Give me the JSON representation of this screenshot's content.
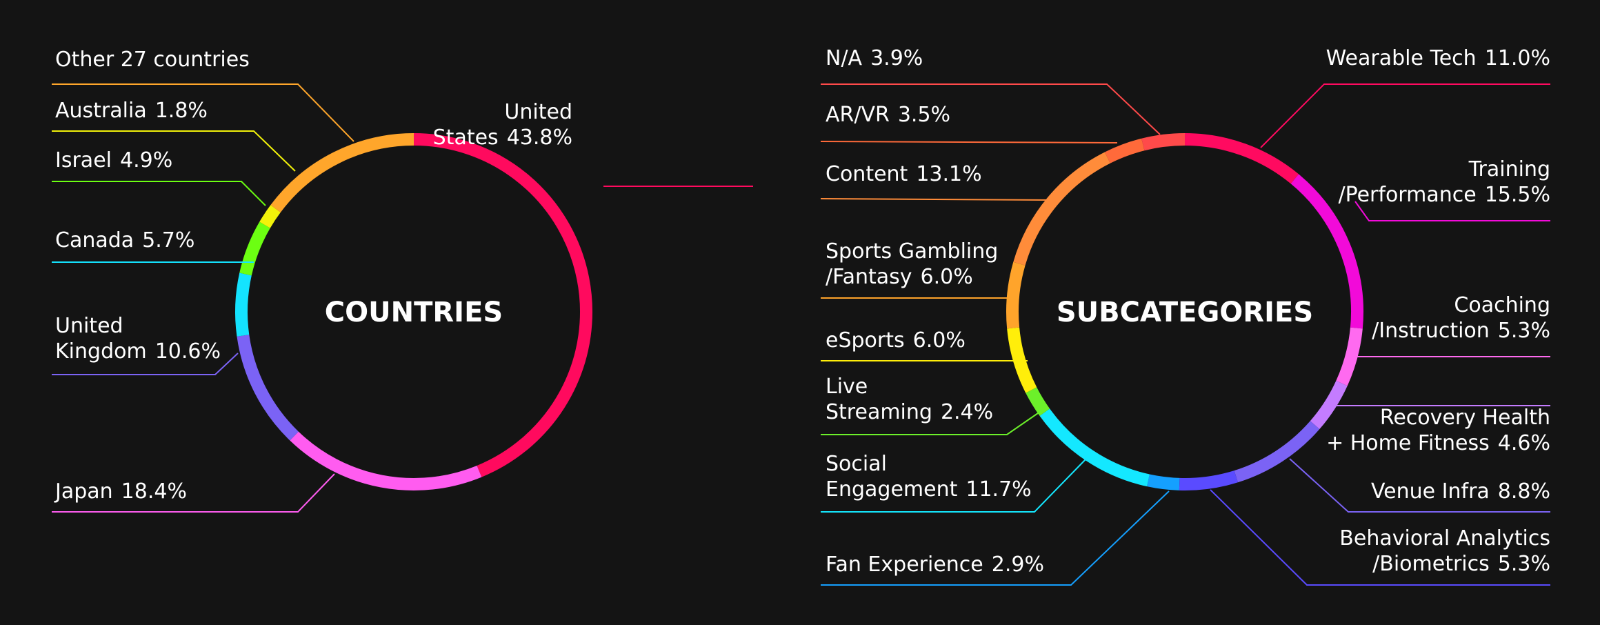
{
  "chart_data": [
    {
      "type": "donut",
      "center_label": "COUNTRIES",
      "slices": [
        {
          "lines": [
            "United",
            "States"
          ],
          "value_label": "43.8%",
          "value": 43.8,
          "color": "#ff0a5e"
        },
        {
          "lines": [
            "Japan"
          ],
          "value_label": "18.4%",
          "value": 18.4,
          "color": "#ff5cf0"
        },
        {
          "lines": [
            "United",
            "Kingdom"
          ],
          "value_label": "10.6%",
          "value": 10.6,
          "color": "#7b63f5"
        },
        {
          "lines": [
            "Canada"
          ],
          "value_label": "5.7%",
          "value": 5.7,
          "color": "#14e3ff"
        },
        {
          "lines": [
            "Israel"
          ],
          "value_label": "4.9%",
          "value": 4.9,
          "color": "#6cff12"
        },
        {
          "lines": [
            "Australia"
          ],
          "value_label": "1.8%",
          "value": 1.8,
          "color": "#f2f20a"
        },
        {
          "lines": [
            "Other 27 countries"
          ],
          "value_label": "",
          "value": 14.8,
          "color": "#ffa62b"
        }
      ]
    },
    {
      "type": "donut",
      "center_label": "SUBCATEGORIES",
      "slices": [
        {
          "lines": [
            "Wearable Tech"
          ],
          "value_label": "11.0%",
          "value": 11.0,
          "color": "#ff0a60"
        },
        {
          "lines": [
            "Training",
            "/Performance"
          ],
          "value_label": "15.5%",
          "value": 15.5,
          "color": "#f20ad9"
        },
        {
          "lines": [
            "Coaching",
            "/Instruction"
          ],
          "value_label": "5.3%",
          "value": 5.3,
          "color": "#ff6af0"
        },
        {
          "lines": [
            "Recovery Health",
            "+ Home Fitness"
          ],
          "value_label": "4.6%",
          "value": 4.6,
          "color": "#c47cff"
        },
        {
          "lines": [
            "Venue Infra"
          ],
          "value_label": "8.8%",
          "value": 8.8,
          "color": "#7b63f5"
        },
        {
          "lines": [
            "Behavioral Analytics",
            "/Biometrics"
          ],
          "value_label": "5.3%",
          "value": 5.3,
          "color": "#5a4bff"
        },
        {
          "lines": [
            "Fan Experience"
          ],
          "value_label": "2.9%",
          "value": 2.9,
          "color": "#15a0ff"
        },
        {
          "lines": [
            "Social",
            "Engagement"
          ],
          "value_label": "11.7%",
          "value": 11.7,
          "color": "#14e8ff"
        },
        {
          "lines": [
            "Live",
            "Streaming"
          ],
          "value_label": "2.4%",
          "value": 2.4,
          "color": "#6cf02a"
        },
        {
          "lines": [
            "eSports"
          ],
          "value_label": "6.0%",
          "value": 6.0,
          "color": "#ffee0a"
        },
        {
          "lines": [
            "Sports Gambling",
            "/Fantasy"
          ],
          "value_label": "6.0%",
          "value": 6.0,
          "color": "#ffa42b"
        },
        {
          "lines": [
            "Content"
          ],
          "value_label": "13.1%",
          "value": 13.1,
          "color": "#ff8c3a"
        },
        {
          "lines": [
            "AR/VR"
          ],
          "value_label": "3.5%",
          "value": 3.5,
          "color": "#ff6a3a"
        },
        {
          "lines": [
            "N/A"
          ],
          "value_label": "3.9%",
          "value": 3.9,
          "color": "#ff4a4a"
        }
      ]
    }
  ]
}
